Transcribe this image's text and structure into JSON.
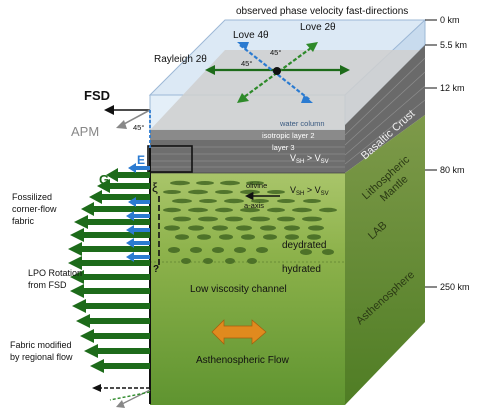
{
  "header": {
    "title": "observed phase velocity fast-directions"
  },
  "surface": {
    "love4": "Love 4θ",
    "love2": "Love 2θ",
    "rayleigh2": "Rayleigh 2θ",
    "angle_top": "45°",
    "angle_left": "45°",
    "water_column": "water column"
  },
  "depths": {
    "d0": "0 km",
    "d55": "5.5 km",
    "d12": "12 km",
    "d80": "80 km",
    "d250": "250 km"
  },
  "side_labels": {
    "basaltic_crust": "Basaltic Crust",
    "lithospheric_mantle_1": "Lithospheric",
    "lithospheric_mantle_2": "Mantle",
    "lab": "LAB",
    "asthenosphere": "Asthenosphere"
  },
  "front": {
    "isotropic_layer2": "isotropic layer 2",
    "layer3": "layer 3",
    "vsh_vsv_1": "V",
    "vsh_vsv_sub_a": "SH",
    "vsh_vsv_gt": " > V",
    "vsh_vsv_sub_b": "SV",
    "olivine_1": "olivine",
    "olivine_2": "a-axis",
    "dehydrated": "deydrated",
    "hydrated": "hydrated",
    "low_viscosity": "Low viscosity channel",
    "astheno_flow": "Asthenospheric Flow"
  },
  "left": {
    "fsd": "FSD",
    "apm": "APM",
    "angle": "45°",
    "e_label": "E",
    "g_label": "G",
    "xi": "ξ",
    "question": "?",
    "fossilized_1": "Fossilized",
    "fossilized_2": "corner-flow",
    "fossilized_3": "fabric",
    "lpo_1": "LPO Rotation",
    "lpo_2": "from FSD",
    "fabric_1": "Fabric modified",
    "fabric_2": "by regional flow"
  },
  "colors": {
    "green_arrow": "#1d6b1a",
    "blue_arrow": "#2b7bd1",
    "green_dashed": "#2e8a2a",
    "mantle": "#8bb04a",
    "asthenosphere": "#74a63a",
    "water": "#d8e8f5",
    "flow_arrow": "#e08a1e"
  }
}
